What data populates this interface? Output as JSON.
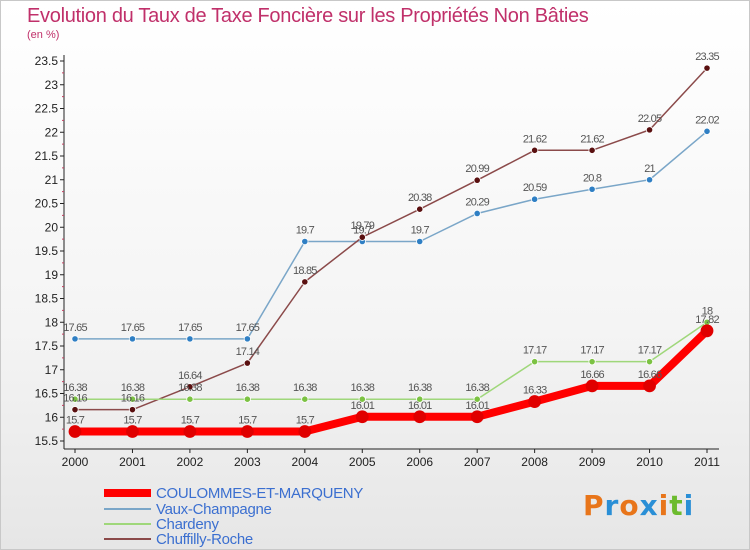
{
  "header": {
    "title": "Evolution du Taux de Taxe Foncière sur les Propriétés Non Bâties",
    "unit": "(en %)"
  },
  "logo": {
    "text": "Proxiti",
    "colors": [
      "#e8751a",
      "#2a8fd6",
      "#e8751a",
      "#2a8fd6",
      "#e8751a",
      "#6cbb2e",
      "#2a8fd6"
    ]
  },
  "chart_data": {
    "type": "line",
    "x": [
      "2000",
      "2001",
      "2002",
      "2003",
      "2004",
      "2005",
      "2006",
      "2007",
      "2008",
      "2009",
      "2010",
      "2011"
    ],
    "ylim": [
      15.5,
      23.5
    ],
    "yticks": [
      "15.5",
      "16",
      "16.5",
      "17",
      "17.5",
      "18",
      "18.5",
      "19",
      "19.5",
      "20",
      "20.5",
      "21",
      "21.5",
      "22",
      "22.5",
      "23",
      "23.5"
    ],
    "grid": false,
    "legend_position": "bottom-left",
    "series": [
      {
        "name": "COULOMMES-ET-MARQUENY",
        "color": "#ff0000",
        "dot": "#e00000",
        "width": 8,
        "values": [
          15.7,
          15.7,
          15.7,
          15.7,
          15.7,
          16.01,
          16.01,
          16.01,
          16.33,
          16.66,
          16.66,
          17.82
        ],
        "labels": [
          "15.7",
          "15.7",
          "15.7",
          "15.7",
          "15.7",
          "16.01",
          "16.01",
          "16.01",
          "16.33",
          "16.66",
          "16.66",
          "17.82"
        ]
      },
      {
        "name": "Vaux-Champagne",
        "color": "#7aa6c8",
        "dot": "#2f7fc4",
        "width": 1.5,
        "values": [
          17.65,
          17.65,
          17.65,
          17.65,
          19.7,
          19.7,
          19.7,
          20.29,
          20.59,
          20.8,
          21,
          22.02
        ],
        "labels": [
          "17.65",
          "17.65",
          "17.65",
          "17.65",
          "19.7",
          "19.7",
          "19.7",
          "20.29",
          "20.59",
          "20.8",
          "21",
          "22.02"
        ]
      },
      {
        "name": "Chardeny",
        "color": "#9fd77a",
        "dot": "#7cc243",
        "width": 1.5,
        "values": [
          16.38,
          16.38,
          16.38,
          16.38,
          16.38,
          16.38,
          16.38,
          16.38,
          17.17,
          17.17,
          17.17,
          18
        ],
        "labels": [
          "16.38",
          "16.38",
          "16.38",
          "16.38",
          "16.38",
          "16.38",
          "16.38",
          "16.38",
          "17.17",
          "17.17",
          "17.17",
          "18"
        ]
      },
      {
        "name": "Chuffilly-Roche",
        "color": "#8b4a4a",
        "dot": "#5a1010",
        "width": 1.5,
        "values": [
          16.16,
          16.16,
          16.64,
          17.14,
          18.85,
          19.79,
          20.38,
          20.99,
          21.62,
          21.62,
          22.05,
          23.35
        ],
        "labels": [
          "16.16",
          "16.16",
          "16.64",
          "17.14",
          "18.85",
          "19.79",
          "20.38",
          "20.99",
          "21.62",
          "21.62",
          "22.05",
          "23.35"
        ]
      }
    ]
  }
}
